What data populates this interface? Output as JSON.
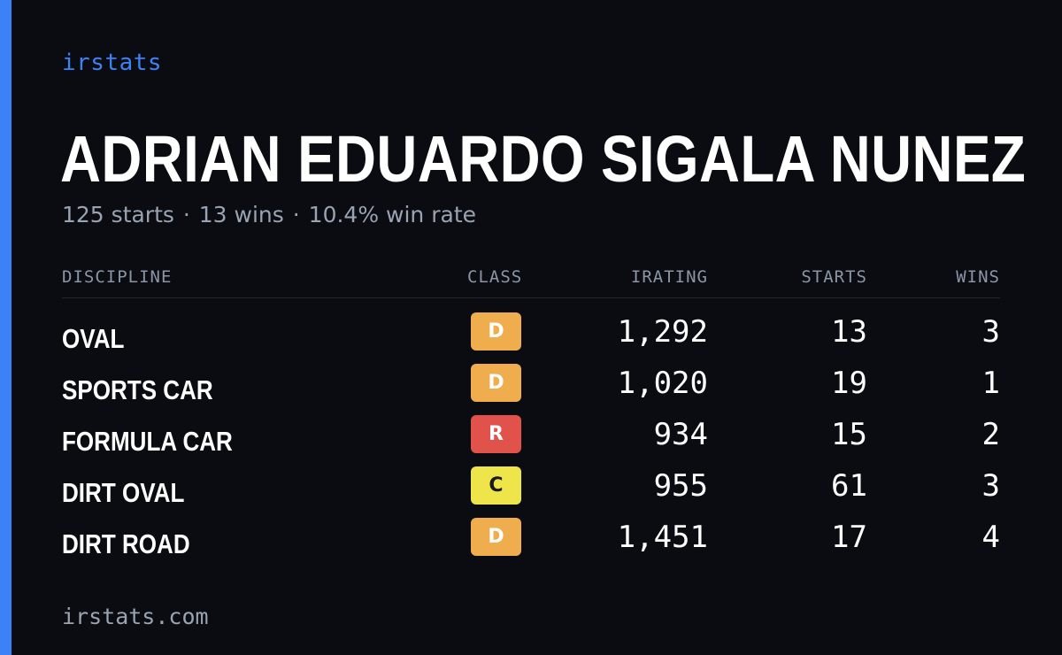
{
  "brand": "irstats",
  "driver": {
    "name": "ADRIAN EDUARDO SIGALA NUNEZ"
  },
  "summary": {
    "starts": "125 starts",
    "wins": "13 wins",
    "win_rate": "10.4% win rate",
    "separator": "·"
  },
  "table": {
    "headers": {
      "discipline": "DISCIPLINE",
      "class": "CLASS",
      "irating": "IRATING",
      "starts": "STARTS",
      "wins": "WINS"
    },
    "rows": [
      {
        "discipline": "OVAL",
        "class": "D",
        "class_color": "#f0ad4e",
        "class_text": "#ffffff",
        "irating": "1,292",
        "starts": "13",
        "wins": "3"
      },
      {
        "discipline": "SPORTS CAR",
        "class": "D",
        "class_color": "#f0ad4e",
        "class_text": "#ffffff",
        "irating": "1,020",
        "starts": "19",
        "wins": "1"
      },
      {
        "discipline": "FORMULA CAR",
        "class": "R",
        "class_color": "#e0524a",
        "class_text": "#ffffff",
        "irating": "934",
        "starts": "15",
        "wins": "2"
      },
      {
        "discipline": "DIRT OVAL",
        "class": "C",
        "class_color": "#ede54a",
        "class_text": "#1a1a1a",
        "irating": "955",
        "starts": "61",
        "wins": "3"
      },
      {
        "discipline": "DIRT ROAD",
        "class": "D",
        "class_color": "#f0ad4e",
        "class_text": "#ffffff",
        "irating": "1,451",
        "starts": "17",
        "wins": "4"
      }
    ]
  },
  "footer": "irstats.com",
  "colors": {
    "accent": "#3b82f6",
    "background": "#0a0c12"
  }
}
